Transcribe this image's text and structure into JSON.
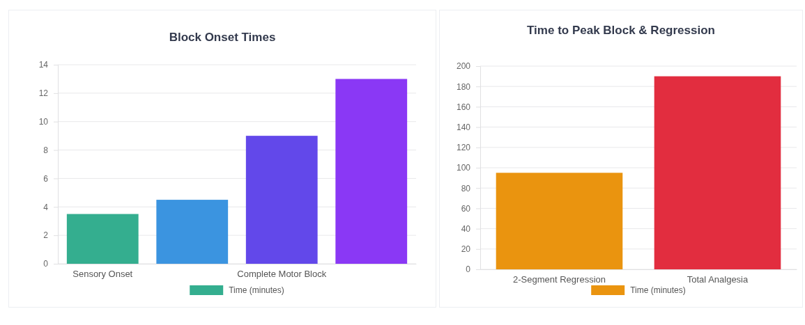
{
  "chart_data": [
    {
      "type": "bar",
      "title": "Block Onset Times",
      "categories": [
        "Sensory Onset",
        null,
        "Complete Motor Block",
        null
      ],
      "series": [
        {
          "name": "Time (minutes)",
          "colors": [
            "#34ae8f",
            "#3b94e0",
            "#6248ea",
            "#8a38f5"
          ],
          "values": [
            3.5,
            4.5,
            9,
            13
          ]
        }
      ],
      "ylim": [
        0,
        14
      ],
      "yticks": [
        0,
        2,
        4,
        6,
        8,
        10,
        12,
        14
      ],
      "grid": "y",
      "legend": "bottom"
    },
    {
      "type": "bar",
      "title": "Time to Peak Block & Regression",
      "categories": [
        "2-Segment Regression",
        "Total Analgesia"
      ],
      "series": [
        {
          "name": "Time (minutes)",
          "colors": [
            "#ea940f",
            "#e22d3f"
          ],
          "values": [
            95,
            190
          ]
        }
      ],
      "ylim": [
        0,
        200
      ],
      "yticks": [
        0,
        20,
        40,
        60,
        80,
        100,
        120,
        140,
        160,
        180,
        200
      ],
      "grid": "y",
      "legend": "bottom"
    }
  ]
}
